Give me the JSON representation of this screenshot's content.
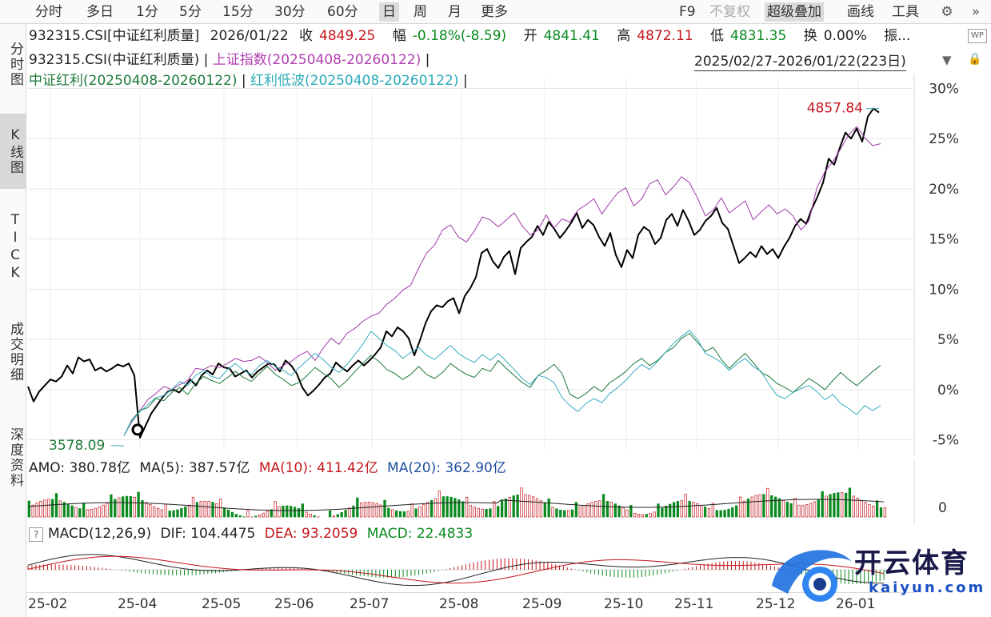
{
  "toolbar": {
    "periods": [
      "分时",
      "多日",
      "1分",
      "5分",
      "15分",
      "30分",
      "60分",
      "日",
      "周",
      "月",
      "更多"
    ],
    "active_period": "日",
    "f9": "F9",
    "fuquan": "不复权",
    "overlay": "超级叠加",
    "draw": "画线",
    "tools": "工具"
  },
  "leftnav": [
    "分时图",
    "K线图",
    "TICK",
    "成交明细",
    "深度资料"
  ],
  "quote": {
    "code": "932315.CSI[中证红利质量]",
    "date": "2026/01/22",
    "close_label": "收",
    "close": "4849.25",
    "change_label": "幅",
    "change": "-0.18%(-8.59)",
    "open_label": "开",
    "open": "4841.41",
    "high_label": "高",
    "high": "4872.11",
    "low_label": "低",
    "low": "4831.35",
    "turnover_label": "换",
    "turnover": "0.00%",
    "amp_label": "振..."
  },
  "legend": {
    "main": "932315.CSI(中证红利质量)",
    "sep": " | ",
    "sh": "上证指数(20250408-20260122)",
    "zzhl": "中证红利(20250408-20260122)",
    "hldb": "红利低波(20250408-20260122)",
    "end": " |"
  },
  "date_range": "2025/02/27-2026/01/22(223日)",
  "colors": {
    "main": "#000000",
    "sh": "#a03aa8",
    "zzhl": "#1e7a3a",
    "hldb": "#35aebd",
    "red": "#c4161c",
    "green": "#0a8a1f"
  },
  "icons": {
    "settings": "gear-icon",
    "expand": "double-chevron-icon",
    "lock": "lock-icon",
    "wp": "WP"
  },
  "chart_data": {
    "type": "line",
    "y_axis_ticks": [
      "30%",
      "25%",
      "20%",
      "15%",
      "10%",
      "5%",
      "0%",
      "-5%"
    ],
    "ylim": [
      -6,
      31
    ],
    "x_tick_labels": [
      "25-02",
      "25-04",
      "25-05",
      "25-06",
      "25-07",
      "25-08",
      "25-09",
      "25-10",
      "25-11",
      "25-12",
      "26-01"
    ],
    "max_label": "4857.84",
    "min_label": "3578.09",
    "series": [
      {
        "name": "932315.CSI(中证红利质量)",
        "values": [
          0.3,
          -1.2,
          -0.2,
          0.4,
          1.0,
          0.8,
          1.3,
          2.4,
          1.6,
          3.2,
          2.8,
          3.0,
          1.9,
          2.2,
          1.8,
          2.1,
          2.5,
          2.3,
          2.6,
          1.4,
          -4.8,
          -3.6,
          -2.4,
          -1.6,
          -0.8,
          -0.2,
          0.0,
          -0.3,
          0.3,
          1.0,
          0.4,
          1.4,
          1.9,
          1.5,
          2.6,
          2.2,
          2.1,
          1.3,
          1.6,
          1.9,
          1.2,
          1.8,
          2.2,
          2.6,
          2.5,
          1.8,
          2.9,
          2.4,
          1.6,
          0.2,
          -0.6,
          -0.1,
          0.5,
          1.2,
          1.6,
          2.7,
          2.2,
          1.8,
          2.4,
          2.9,
          2.4,
          2.9,
          3.5,
          4.2,
          5.8,
          5.3,
          6.2,
          5.8,
          5.1,
          3.4,
          4.9,
          6.6,
          7.8,
          8.4,
          8.2,
          8.8,
          9.1,
          7.6,
          9.3,
          10.1,
          11.2,
          13.6,
          14.0,
          12.8,
          12.1,
          13.2,
          13.8,
          11.5,
          14.1,
          14.7,
          15.2,
          16.3,
          15.4,
          16.7,
          16.0,
          15.1,
          15.8,
          16.6,
          17.6,
          16.1,
          16.9,
          16.4,
          15.2,
          14.3,
          15.6,
          13.4,
          12.2,
          13.9,
          13.1,
          15.4,
          16.2,
          15.8,
          14.5,
          15.1,
          16.9,
          17.5,
          16.3,
          17.9,
          16.8,
          15.4,
          15.9,
          16.8,
          17.3,
          18.1,
          16.6,
          16.0,
          14.3,
          12.6,
          13.1,
          13.7,
          13.2,
          14.3,
          13.5,
          14.0,
          13.1,
          14.2,
          15.1,
          16.3,
          17.0,
          16.5,
          18.0,
          19.2,
          20.6,
          23.0,
          22.4,
          24.1,
          25.6,
          25.0,
          26.0,
          24.7,
          27.2,
          28.0,
          27.6
        ]
      },
      {
        "name": "上证指数(20250408-20260122)",
        "values": [
          -4.6,
          -3.2,
          -2.1,
          -1.0,
          -0.4,
          0.3,
          0.0,
          0.5,
          0.9,
          2.1,
          2.0,
          2.4,
          2.2,
          2.6,
          3.1,
          2.8,
          2.9,
          3.3,
          2.7,
          1.9,
          2.4,
          2.8,
          3.4,
          3.8,
          2.9,
          4.1,
          5.1,
          4.5,
          5.6,
          6.1,
          6.8,
          7.3,
          7.6,
          8.5,
          9.1,
          9.9,
          10.4,
          12.1,
          13.6,
          14.4,
          15.9,
          16.4,
          15.2,
          14.7,
          15.8,
          17.2,
          16.9,
          16.2,
          16.9,
          17.6,
          16.3,
          15.4,
          15.9,
          17.4,
          16.1,
          17.0,
          16.7,
          17.9,
          18.4,
          19.0,
          17.5,
          18.6,
          19.6,
          20.1,
          18.3,
          19.0,
          20.5,
          20.9,
          19.4,
          20.2,
          21.2,
          20.6,
          19.1,
          17.3,
          17.9,
          19.1,
          17.6,
          18.2,
          18.8,
          16.9,
          17.7,
          18.4,
          17.5,
          18.0,
          17.3,
          15.9,
          16.8,
          20.1,
          21.7,
          22.7,
          24.0,
          25.4,
          26.2,
          25.1,
          24.3,
          24.5
        ]
      },
      {
        "name": "中证红利(20250408-20260122)",
        "values": [
          -4.6,
          -3.0,
          -2.1,
          -1.8,
          -0.9,
          -1.1,
          -0.3,
          0.2,
          -0.5,
          0.6,
          1.3,
          0.9,
          0.6,
          1.2,
          1.8,
          1.2,
          0.8,
          1.6,
          2.3,
          1.5,
          1.0,
          0.4,
          0.7,
          1.4,
          2.2,
          1.6,
          1.1,
          0.2,
          0.9,
          1.8,
          2.6,
          3.4,
          2.8,
          2.0,
          1.6,
          1.0,
          1.5,
          2.3,
          1.5,
          1.1,
          1.7,
          2.6,
          2.0,
          1.5,
          1.2,
          2.1,
          1.8,
          2.9,
          2.1,
          1.4,
          0.7,
          0.2,
          1.4,
          1.9,
          2.5,
          1.6,
          -0.5,
          -0.9,
          -0.4,
          0.3,
          -0.2,
          0.7,
          1.2,
          1.8,
          2.6,
          3.1,
          2.4,
          2.9,
          3.7,
          4.2,
          5.1,
          5.6,
          4.7,
          3.8,
          4.2,
          3.0,
          2.1,
          2.9,
          3.6,
          2.7,
          1.7,
          1.3,
          0.6,
          0.2,
          -0.3,
          0.4,
          1.1,
          0.6,
          0.0,
          0.9,
          1.7,
          1.0,
          0.4,
          1.1,
          1.8,
          2.4
        ]
      },
      {
        "name": "红利低波(20250408-20260122)",
        "values": [
          -4.6,
          -3.1,
          -2.2,
          -1.5,
          -0.8,
          -0.6,
          0.0,
          0.8,
          0.4,
          1.4,
          1.9,
          1.3,
          1.1,
          2.0,
          2.6,
          1.9,
          1.5,
          2.4,
          2.9,
          2.3,
          1.9,
          1.4,
          2.2,
          2.9,
          3.6,
          3.0,
          2.2,
          1.7,
          2.5,
          3.5,
          4.5,
          5.8,
          5.1,
          4.4,
          3.9,
          3.1,
          3.7,
          4.2,
          3.4,
          3.0,
          3.7,
          4.4,
          3.6,
          3.1,
          2.7,
          3.5,
          2.9,
          3.6,
          2.8,
          2.0,
          1.1,
          0.5,
          1.4,
          1.2,
          0.7,
          -0.8,
          -1.6,
          -2.2,
          -1.4,
          -0.9,
          -1.3,
          -0.4,
          0.2,
          0.9,
          1.8,
          2.5,
          2.0,
          2.8,
          3.7,
          4.6,
          5.3,
          5.9,
          5.0,
          3.6,
          3.2,
          2.7,
          1.9,
          2.6,
          3.1,
          2.3,
          1.8,
          0.5,
          -0.6,
          -0.9,
          -0.3,
          0.1,
          0.4,
          -0.2,
          -1.0,
          -0.5,
          -1.4,
          -1.9,
          -2.5,
          -1.6,
          -2.1,
          -1.6
        ]
      }
    ]
  },
  "amo": {
    "label": "AMO: 380.78亿",
    "ma5": "MA(5): 387.57亿",
    "ma10": "MA(10): 411.42亿",
    "ma20": "MA(20): 362.90亿",
    "y_label": "0"
  },
  "macd": {
    "qmark": "?",
    "label": "MACD(12,26,9)",
    "dif": "DIF: 104.4475",
    "dea": "DEA: 93.2059",
    "macd": "MACD: 22.4833"
  },
  "brand": {
    "name": "开云体育",
    "url": "kaiyun.com"
  }
}
